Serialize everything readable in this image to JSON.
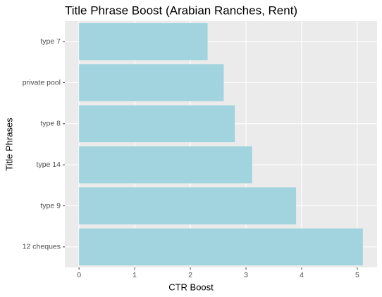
{
  "chart_data": {
    "type": "barh",
    "title": "Title Phrase Boost (Arabian Ranches, Rent)",
    "x_label": "CTR Boost",
    "y_label": "Title Phrases",
    "categories": [
      "type 7",
      "private pool",
      "type 8",
      "type 14",
      "type 9",
      "12 cheques"
    ],
    "values": [
      2.31,
      2.6,
      2.8,
      3.11,
      3.9,
      5.1
    ],
    "color": "#a1d4de",
    "xlim": [
      -0.255,
      5.355
    ],
    "xticks": [
      0,
      1,
      2,
      3,
      4,
      5
    ],
    "grid": true
  }
}
